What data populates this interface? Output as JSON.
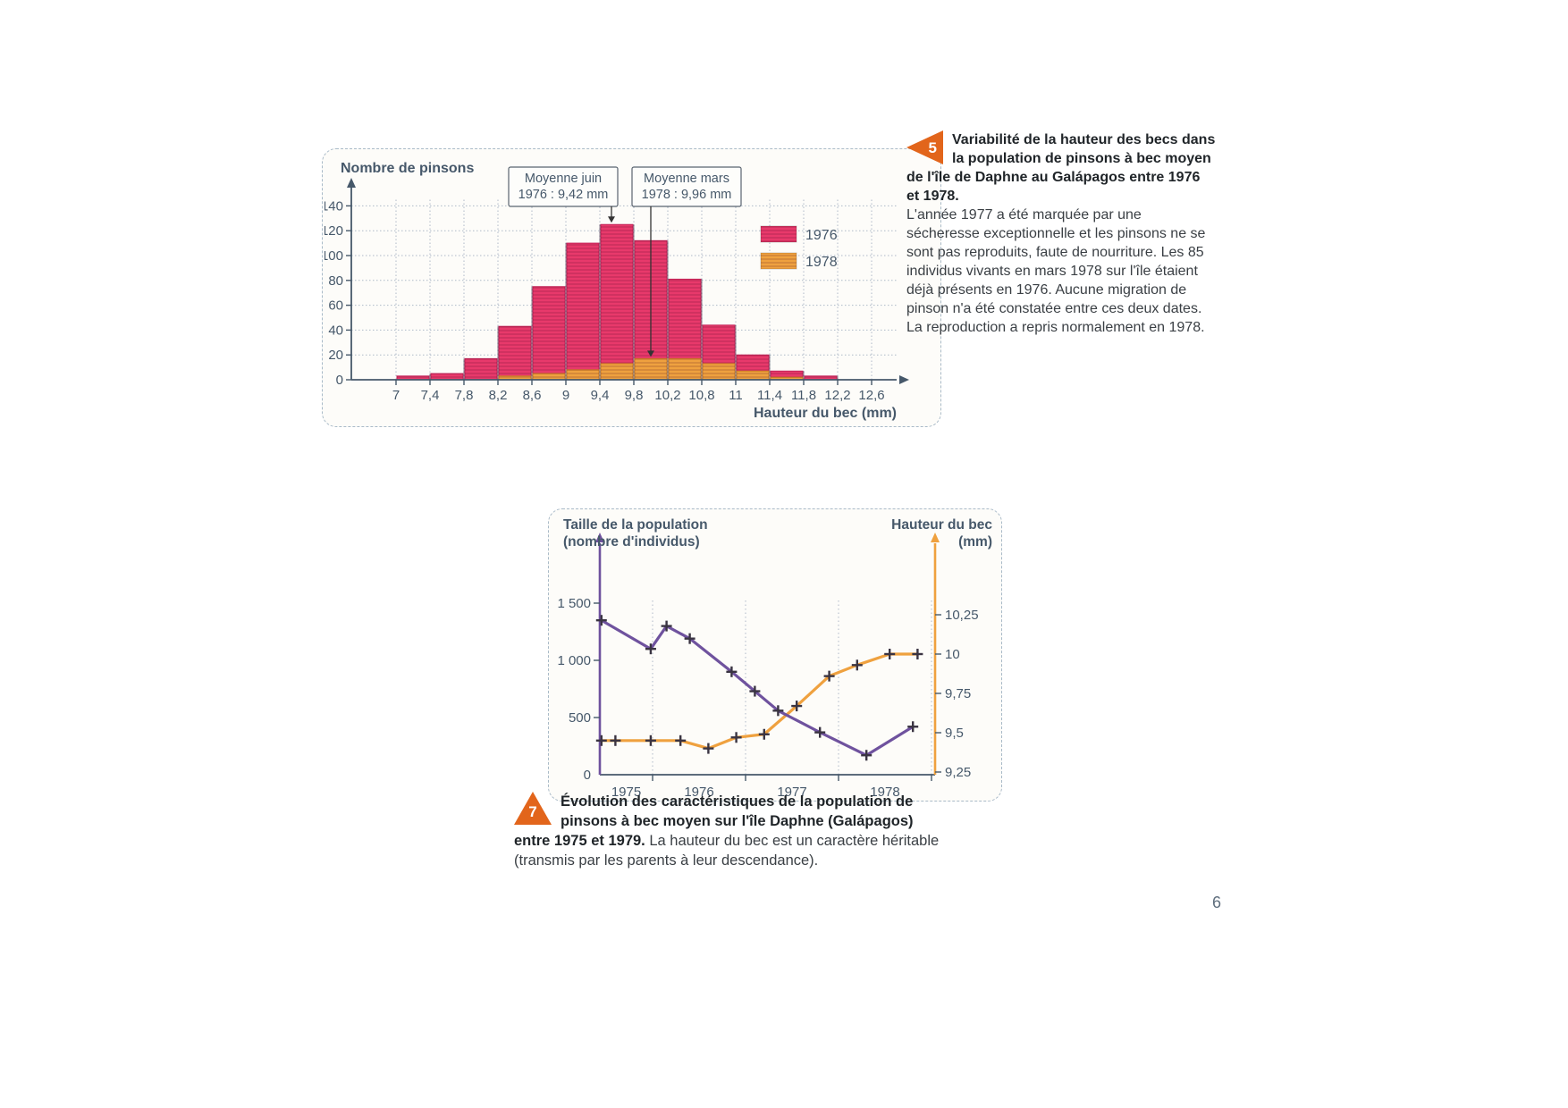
{
  "page": {
    "number": "6"
  },
  "colors": {
    "pink": "#e8396b",
    "pink_edge": "#c22257",
    "orange": "#efa13f",
    "orange_edge": "#cf7e22",
    "purple": "#6f529e",
    "axis": "#46586a",
    "grid": "#aeb9c8",
    "marker_cross": "#3a3442",
    "annotation_border": "#5a6470",
    "caption_marker": "#e2651b"
  },
  "captions": {
    "fig5": {
      "marker": "5",
      "title": "Variabilité de la hauteur des becs dans la population de pinsons à bec moyen de l'île de Daphne au Galápagos entre 1976 et 1978.",
      "body": "L'année 1977 a été marquée par une sécheresse exceptionnelle et les pinsons ne se sont pas reproduits, faute de nourriture. Les 85 individus vivants en mars 1978 sur l'île étaient déjà présents en 1976. Aucune migration de pinson n'a été constatée entre ces deux dates. La reproduction a repris normalement en 1978."
    },
    "fig7": {
      "marker": "7",
      "title": "Évolution des caractéristiques de la population de pinsons à bec moyen sur l'île Daphne (Galápagos) entre 1975 et 1979.",
      "body": "La hauteur du bec est un caractère héritable (transmis par les parents à leur descendance)."
    }
  },
  "chart_data": [
    {
      "type": "bar",
      "title": "",
      "ylabel": "Nombre de pinsons",
      "xlabel": "Hauteur du bec (mm)",
      "x_tick_labels": [
        "7",
        "7,4",
        "7,8",
        "8,2",
        "8,6",
        "9",
        "9,4",
        "9,8",
        "10,2",
        "10,8",
        "11",
        "11,4",
        "11,8",
        "12,2",
        "12,6"
      ],
      "x_tick_values": [
        7,
        7.4,
        7.8,
        8.2,
        8.6,
        9,
        9.4,
        9.8,
        10.2,
        10.8,
        11,
        11.4,
        11.8,
        12.2,
        12.6
      ],
      "y_ticks": [
        0,
        20,
        40,
        60,
        80,
        100,
        120,
        140
      ],
      "ylim": [
        0,
        150
      ],
      "grid": true,
      "legend_position": "top-right",
      "series": [
        {
          "name": "1976",
          "color_key": "pink",
          "values": [
            3,
            5,
            17,
            43,
            75,
            110,
            125,
            112,
            81,
            44,
            20,
            7,
            3,
            0
          ]
        },
        {
          "name": "1978",
          "color_key": "orange",
          "values": [
            0,
            0,
            0,
            3,
            5,
            8,
            13,
            17,
            17,
            13,
            7,
            2,
            0,
            0
          ]
        }
      ],
      "annotations": [
        {
          "line1": "Moyenne juin",
          "line2": "1976 : 9,42 mm",
          "points_to_bin": 6,
          "points_to_series": 0
        },
        {
          "line1": "Moyenne mars",
          "line2": "1978 : 9,96 mm",
          "points_to_bin": 7,
          "points_to_series": 1
        }
      ]
    },
    {
      "type": "line",
      "title": "",
      "x_axis": {
        "year_labels": [
          "1975",
          "1976",
          "1977",
          "1978"
        ],
        "tick_years": [
          1976,
          1977,
          1978,
          1979
        ],
        "range": [
          1975.43,
          1979.04
        ]
      },
      "left_axis": {
        "label": [
          "Taille de la population",
          "(nombre d'individus)"
        ],
        "tick_values": [
          0,
          500,
          1000,
          1500
        ],
        "tick_labels": [
          "0",
          "500",
          "1 000",
          "1 500"
        ],
        "range": [
          0,
          2000
        ],
        "color_key": "purple"
      },
      "right_axis": {
        "label": [
          "Hauteur du bec",
          "(mm)"
        ],
        "tick_values": [
          9.25,
          9.5,
          9.75,
          10,
          10.25
        ],
        "tick_labels": [
          "9,25",
          "9,5",
          "9,75",
          "10",
          "10,25"
        ],
        "range": [
          9.25,
          10.4
        ],
        "color_key": "orange"
      },
      "grid": true,
      "series": [
        {
          "name": "Taille de la population",
          "axis": "left",
          "color_key": "purple",
          "points": [
            [
              1975.45,
              1350
            ],
            [
              1975.98,
              1100
            ],
            [
              1976.15,
              1300
            ],
            [
              1976.4,
              1190
            ],
            [
              1976.85,
              900
            ],
            [
              1977.1,
              730
            ],
            [
              1977.35,
              560
            ],
            [
              1977.8,
              370
            ],
            [
              1978.3,
              170
            ],
            [
              1978.8,
              420
            ]
          ]
        },
        {
          "name": "Hauteur du bec",
          "axis": "right",
          "color_key": "orange",
          "points": [
            [
              1975.45,
              9.45
            ],
            [
              1975.6,
              9.45
            ],
            [
              1975.98,
              9.45
            ],
            [
              1976.3,
              9.45
            ],
            [
              1976.6,
              9.4
            ],
            [
              1976.9,
              9.47
            ],
            [
              1977.2,
              9.49
            ],
            [
              1977.55,
              9.67
            ],
            [
              1977.9,
              9.86
            ],
            [
              1978.2,
              9.93
            ],
            [
              1978.55,
              10
            ],
            [
              1978.85,
              10
            ]
          ]
        }
      ]
    }
  ]
}
